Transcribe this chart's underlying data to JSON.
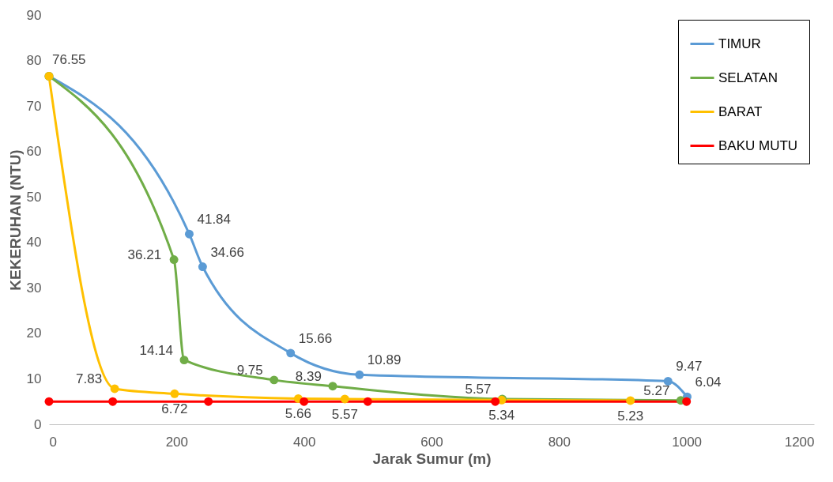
{
  "chart_data": {
    "type": "line",
    "xlabel": "Jarak Sumur (m)",
    "ylabel": "KEKERUHAN (NTU)",
    "xlim": [
      0,
      1200
    ],
    "xticks": [
      0,
      200,
      400,
      600,
      800,
      1000,
      1200
    ],
    "ylim": [
      0,
      90
    ],
    "yticks": [
      0,
      10,
      20,
      30,
      40,
      50,
      60,
      70,
      80,
      90
    ],
    "grid": false,
    "legend": "top right",
    "marker": "circle",
    "line_style": "solid",
    "series": [
      {
        "name": "TIMUR",
        "color": "#5b9bd5",
        "x": [
          0,
          220,
          241,
          379,
          487,
          971,
          1001
        ],
        "values": [
          76.55,
          41.84,
          34.66,
          15.66,
          10.89,
          9.47,
          6.04
        ],
        "value_labels": [
          null,
          "41.84",
          "34.66",
          "15.66",
          "10.89",
          "9.47",
          "6.04"
        ]
      },
      {
        "name": "SELATAN",
        "color": "#70ad47",
        "x": [
          0,
          196,
          212,
          353,
          445,
          711,
          991
        ],
        "values": [
          76.55,
          36.21,
          14.14,
          9.75,
          8.39,
          5.57,
          5.27
        ],
        "value_labels": [
          null,
          "36.21",
          "14.14",
          "9.75",
          "8.39",
          "5.57",
          "5.27"
        ]
      },
      {
        "name": "BARAT",
        "color": "#ffc000",
        "x": [
          0,
          103,
          197,
          391,
          464,
          710,
          912
        ],
        "values": [
          76.55,
          7.83,
          6.72,
          5.66,
          5.57,
          5.34,
          5.23
        ],
        "value_labels": [
          "76.55",
          "7.83",
          "6.72",
          "5.66",
          "5.57",
          "5.34",
          "5.23"
        ]
      },
      {
        "name": "BAKU MUTU",
        "color": "#ff0000",
        "x": [
          0,
          100,
          250,
          400,
          500,
          700,
          1000
        ],
        "values": [
          5,
          5,
          5,
          5,
          5,
          5,
          5
        ]
      }
    ]
  }
}
